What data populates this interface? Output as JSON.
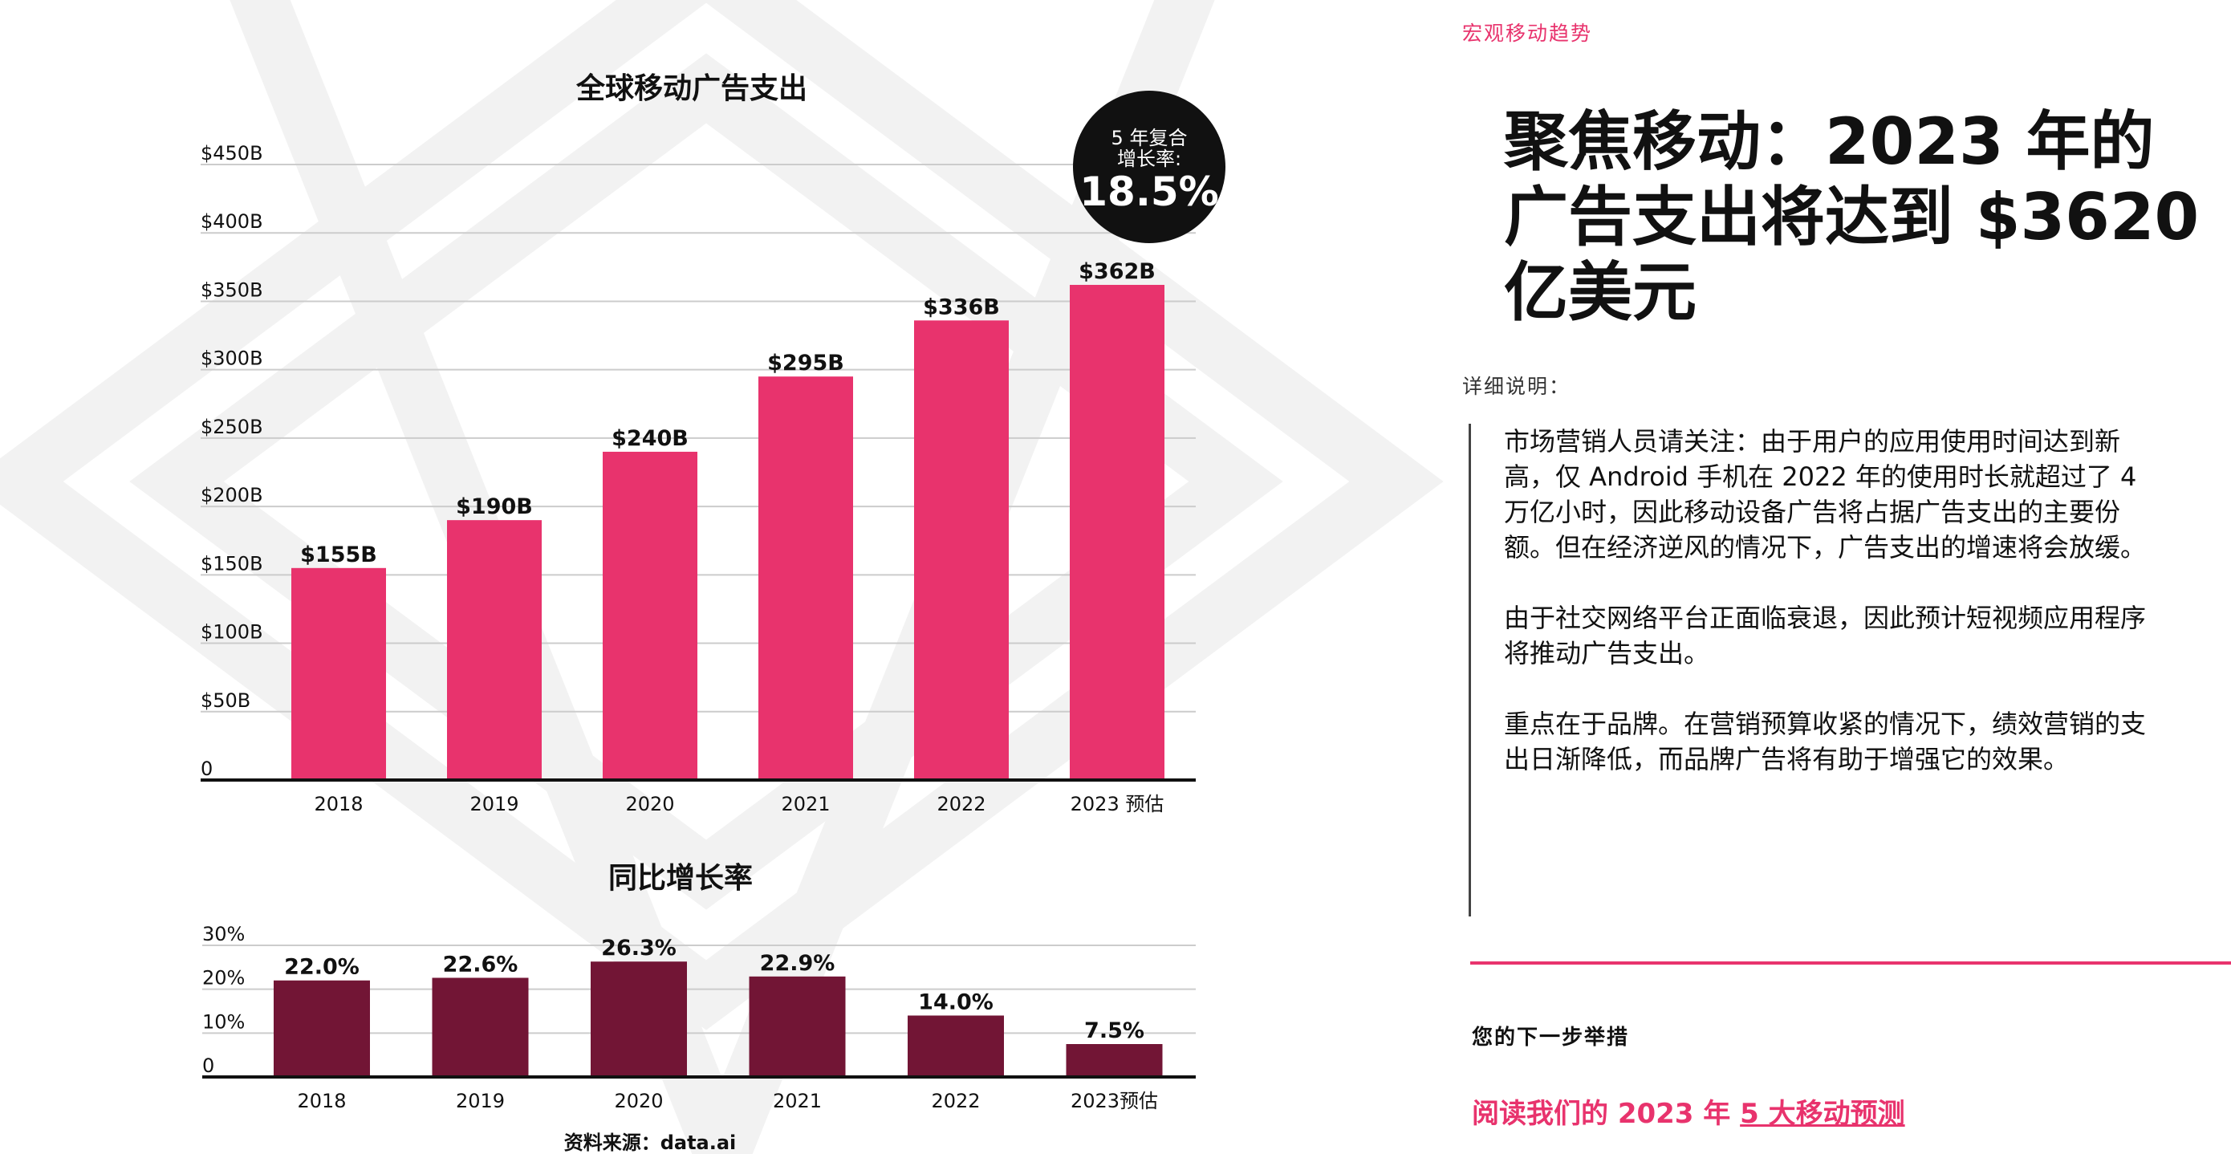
{
  "colors": {
    "pink": "#e8336d",
    "maroon": "#721535",
    "text": "#111111",
    "grid": "#cccccc",
    "bg_watermark": "#f2f2f2"
  },
  "eyebrow": "宏观移动趋势",
  "headline": "聚焦移动：2023 年的广告支出将达到 $3620 亿美元",
  "details_label": "详细说明：",
  "body_paragraphs": [
    "市场营销人员请关注：由于用户的应用使用时间达到新高，仅 Android 手机在 2022 年的使用时长就超过了 4 万亿小时，因此移动设备广告将占据广告支出的主要份额。但在经济逆风的情况下，广告支出的增速将会放缓。",
    "由于社交网络平台正面临衰退，因此预计短视频应用程序将推动广告支出。",
    "重点在于品牌。在营销预算收紧的情况下，绩效营销的支出日渐降低，而品牌广告将有助于增强它的效果。"
  ],
  "next_step_label": "您的下一步举措",
  "cta": {
    "prefix": "阅读我们的 2023 年 ",
    "link": "5 大移动预测"
  },
  "chart_data": [
    {
      "type": "bar",
      "title": "全球移动广告支出",
      "categories": [
        "2018",
        "2019",
        "2020",
        "2021",
        "2022",
        "2023 预估"
      ],
      "values": [
        155,
        190,
        240,
        295,
        336,
        362
      ],
      "data_labels": [
        "$155B",
        "$190B",
        "$240B",
        "$295B",
        "$336B",
        "$362B"
      ],
      "ylim": [
        0,
        450
      ],
      "yticks": [
        0,
        50,
        100,
        150,
        200,
        250,
        300,
        350,
        400,
        450
      ],
      "ytick_labels": [
        "0",
        "$50B",
        "$100B",
        "$150B",
        "$200B",
        "$250B",
        "$300B",
        "$350B",
        "$400B",
        "$450B"
      ],
      "grid": true,
      "color": "#e8336d",
      "badge": {
        "line1": "5 年复合",
        "line2": "增长率:",
        "value": "18.5%"
      }
    },
    {
      "type": "bar",
      "title": "同比增长率",
      "categories": [
        "2018",
        "2019",
        "2020",
        "2021",
        "2022",
        "2023预估"
      ],
      "values": [
        22.0,
        22.6,
        26.3,
        22.9,
        14.0,
        7.5
      ],
      "data_labels": [
        "22.0%",
        "22.6%",
        "26.3%",
        "22.9%",
        "14.0%",
        "7.5%"
      ],
      "ylim": [
        0,
        30
      ],
      "yticks": [
        0,
        10,
        20,
        30
      ],
      "ytick_labels": [
        "0",
        "10%",
        "20%",
        "30%"
      ],
      "grid": true,
      "color": "#721535",
      "source": "资料来源：data.ai"
    }
  ]
}
